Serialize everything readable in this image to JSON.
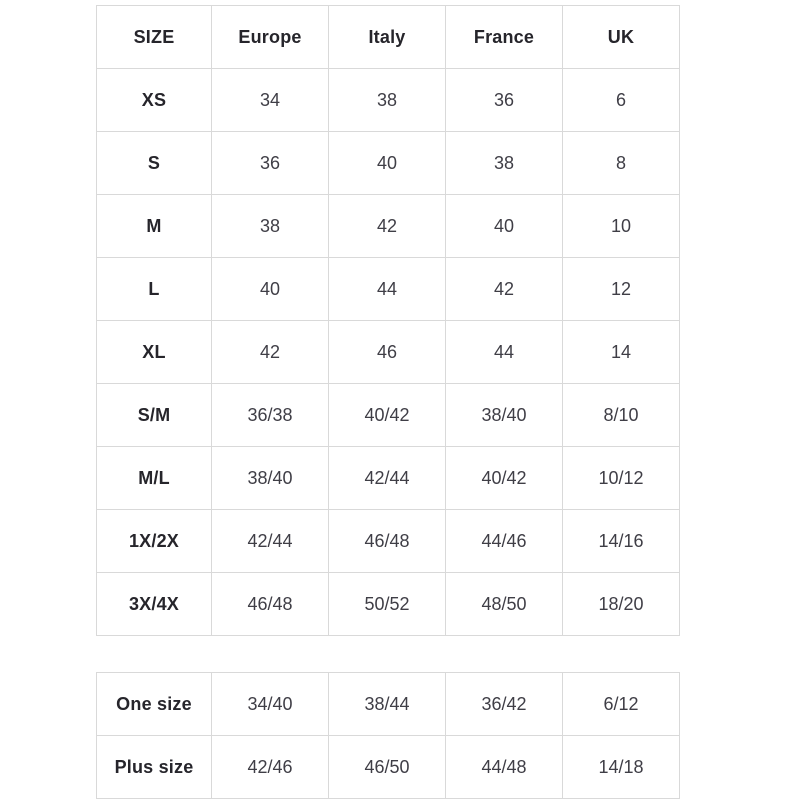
{
  "colors": {
    "background": "#ffffff",
    "border": "#d9d9d9",
    "header_text": "#26252b",
    "cell_text": "#3f3e46"
  },
  "size_table": {
    "headers": [
      "SIZE",
      "Europe",
      "Italy",
      "France",
      "UK"
    ],
    "rows": [
      {
        "size": "XS",
        "values": [
          "34",
          "38",
          "36",
          "6"
        ]
      },
      {
        "size": "S",
        "values": [
          "36",
          "40",
          "38",
          "8"
        ]
      },
      {
        "size": "M",
        "values": [
          "38",
          "42",
          "40",
          "10"
        ]
      },
      {
        "size": "L",
        "values": [
          "40",
          "44",
          "42",
          "12"
        ]
      },
      {
        "size": "XL",
        "values": [
          "42",
          "46",
          "44",
          "14"
        ]
      },
      {
        "size": "S/M",
        "values": [
          "36/38",
          "40/42",
          "38/40",
          "8/10"
        ]
      },
      {
        "size": "M/L",
        "values": [
          "38/40",
          "42/44",
          "40/42",
          "10/12"
        ]
      },
      {
        "size": "1X/2X",
        "values": [
          "42/44",
          "46/48",
          "44/46",
          "14/16"
        ]
      },
      {
        "size": "3X/4X",
        "values": [
          "46/48",
          "50/52",
          "48/50",
          "18/20"
        ]
      }
    ]
  },
  "special_table": {
    "rows": [
      {
        "size": "One size",
        "values": [
          "34/40",
          "38/44",
          "36/42",
          "6/12"
        ]
      },
      {
        "size": "Plus size",
        "values": [
          "42/46",
          "46/50",
          "44/48",
          "14/18"
        ]
      }
    ]
  }
}
